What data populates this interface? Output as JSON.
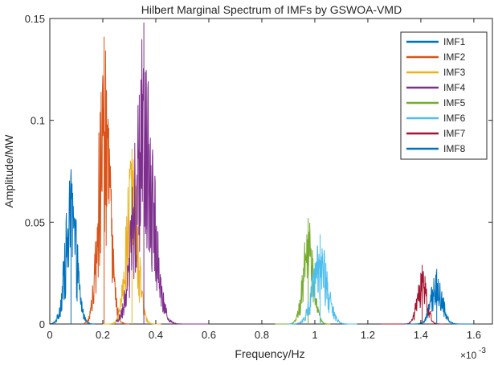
{
  "chart_data": {
    "type": "line",
    "title": "Hilbert Marginal Spectrum of IMFs by GSWOA-VMD",
    "xlabel": "Frequency/Hz",
    "ylabel": "Amplitude/MW",
    "x_scale_exponent": "×10",
    "x_scale_power": "-3",
    "xlim": [
      0,
      1.67
    ],
    "ylim": [
      0,
      0.15
    ],
    "xticks": [
      0,
      0.2,
      0.4,
      0.6,
      0.8,
      1,
      1.2,
      1.4,
      1.6
    ],
    "xtick_labels": [
      "0",
      "0.2",
      "0.4",
      "0.6",
      "0.8",
      "1",
      "1.2",
      "1.4",
      "1.6"
    ],
    "yticks": [
      0,
      0.05,
      0.1,
      0.15
    ],
    "ytick_labels": [
      "0",
      "0.05",
      "0.1",
      "0.15"
    ],
    "legend_position": "top-right",
    "grid": false,
    "series": [
      {
        "name": "IMF1",
        "color": "#0072BD",
        "center": 0.08,
        "width": 0.022,
        "peak": 0.076,
        "range": [
          0.0,
          0.17
        ]
      },
      {
        "name": "IMF2",
        "color": "#D95319",
        "center": 0.205,
        "width": 0.022,
        "peak": 0.141,
        "range": [
          0.13,
          0.3
        ]
      },
      {
        "name": "IMF3",
        "color": "#EDB120",
        "center": 0.31,
        "width": 0.022,
        "peak": 0.086,
        "range": [
          0.2,
          0.42
        ]
      },
      {
        "name": "IMF4",
        "color": "#7E2F8E",
        "center": 0.355,
        "width": 0.035,
        "peak": 0.148,
        "range": [
          0.25,
          0.6
        ]
      },
      {
        "name": "IMF5",
        "color": "#77AC30",
        "center": 0.975,
        "width": 0.02,
        "peak": 0.052,
        "range": [
          0.85,
          1.06
        ]
      },
      {
        "name": "IMF6",
        "color": "#4DBEEE",
        "center": 1.02,
        "width": 0.028,
        "peak": 0.044,
        "range": [
          0.9,
          1.16
        ]
      },
      {
        "name": "IMF7",
        "color": "#A2142F",
        "center": 1.405,
        "width": 0.018,
        "peak": 0.029,
        "range": [
          1.25,
          1.49
        ]
      },
      {
        "name": "IMF8",
        "color": "#0072BD",
        "center": 1.46,
        "width": 0.022,
        "peak": 0.027,
        "range": [
          1.34,
          1.6
        ]
      }
    ]
  }
}
